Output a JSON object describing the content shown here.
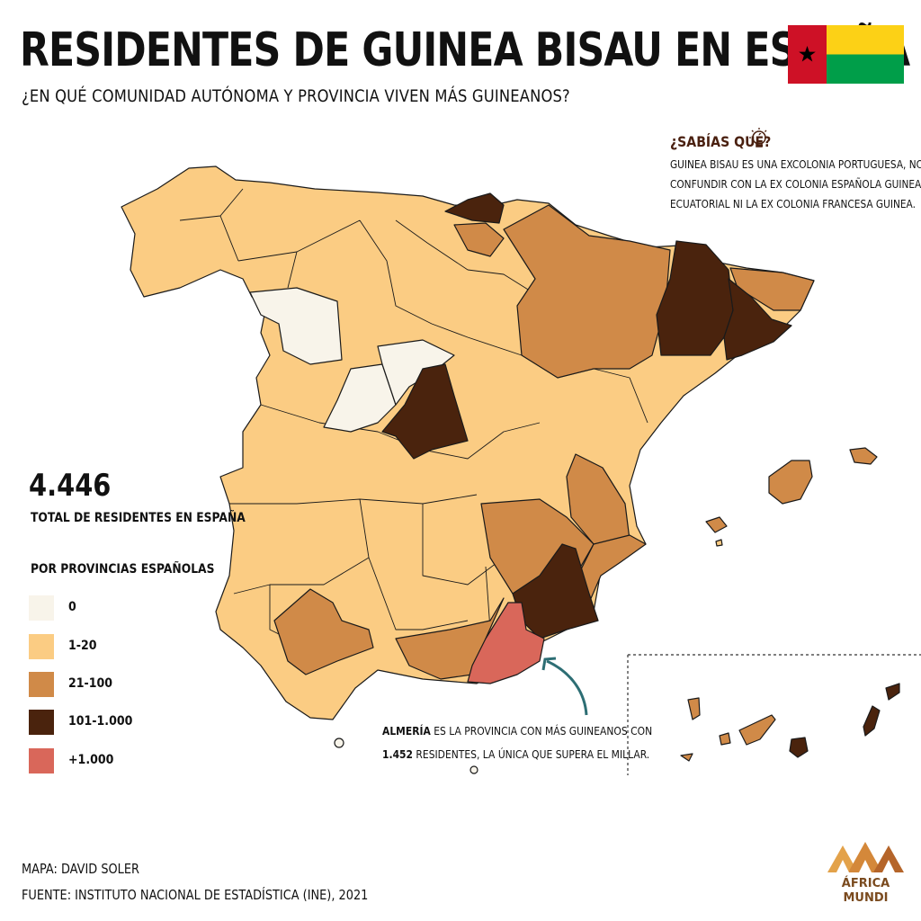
{
  "title": "RESIDENTES DE GUINEA BISAU EN ESPAÑA",
  "subtitle": "¿EN QUÉ COMUNIDAD AUTÓNOMA Y PROVINCIA VIVEN MÁS GUINEANOS?",
  "did_you_know": {
    "title": "¿SABÍAS QUÉ?",
    "lines": [
      "GUINEA BISAU ES UNA EXCOLONIA PORTUGUESA, NO",
      "CONFUNDIR CON LA EX COLONIA ESPAÑOLA GUINEA",
      "ECUATORIAL NI LA EX COLONIA FRANCESA GUINEA."
    ]
  },
  "total": {
    "value": "4.446",
    "label": "TOTAL DE RESIDENTES EN ESPAÑA"
  },
  "legend": {
    "title": "POR PROVINCIAS ESPAÑOLAS",
    "items": [
      {
        "label": "0",
        "color": "#f8f4ea"
      },
      {
        "label": "1-20",
        "color": "#fbcc83"
      },
      {
        "label": "21-100",
        "color": "#d08a48"
      },
      {
        "label": "101-1.000",
        "color": "#4a230d"
      },
      {
        "label": "+1.000",
        "color": "#d9675a"
      }
    ]
  },
  "callout": {
    "bold": "ALMERÍA",
    "line1_rest": " ES LA PROVINCIA CON MÁS GUINEANOS CON",
    "line2_bold": "1.452",
    "line2_rest": " RESIDENTES, LA ÚNICA QUE SUPERA EL MILLAR.",
    "arrow_color": "#2d6e74"
  },
  "credit": "MAPA: DAVID SOLER",
  "source": "FUENTE: INSTITUTO NACIONAL DE ESTADÍSTICA (INE), 2021",
  "logo": {
    "line1": "ÁFRICA",
    "line2": "MUNDI",
    "colors": [
      "#e3a24a",
      "#b5652a"
    ]
  },
  "flag": {
    "red": "#ce1126",
    "yellow": "#fcd116",
    "green": "#009e49",
    "star": "#000000"
  }
}
